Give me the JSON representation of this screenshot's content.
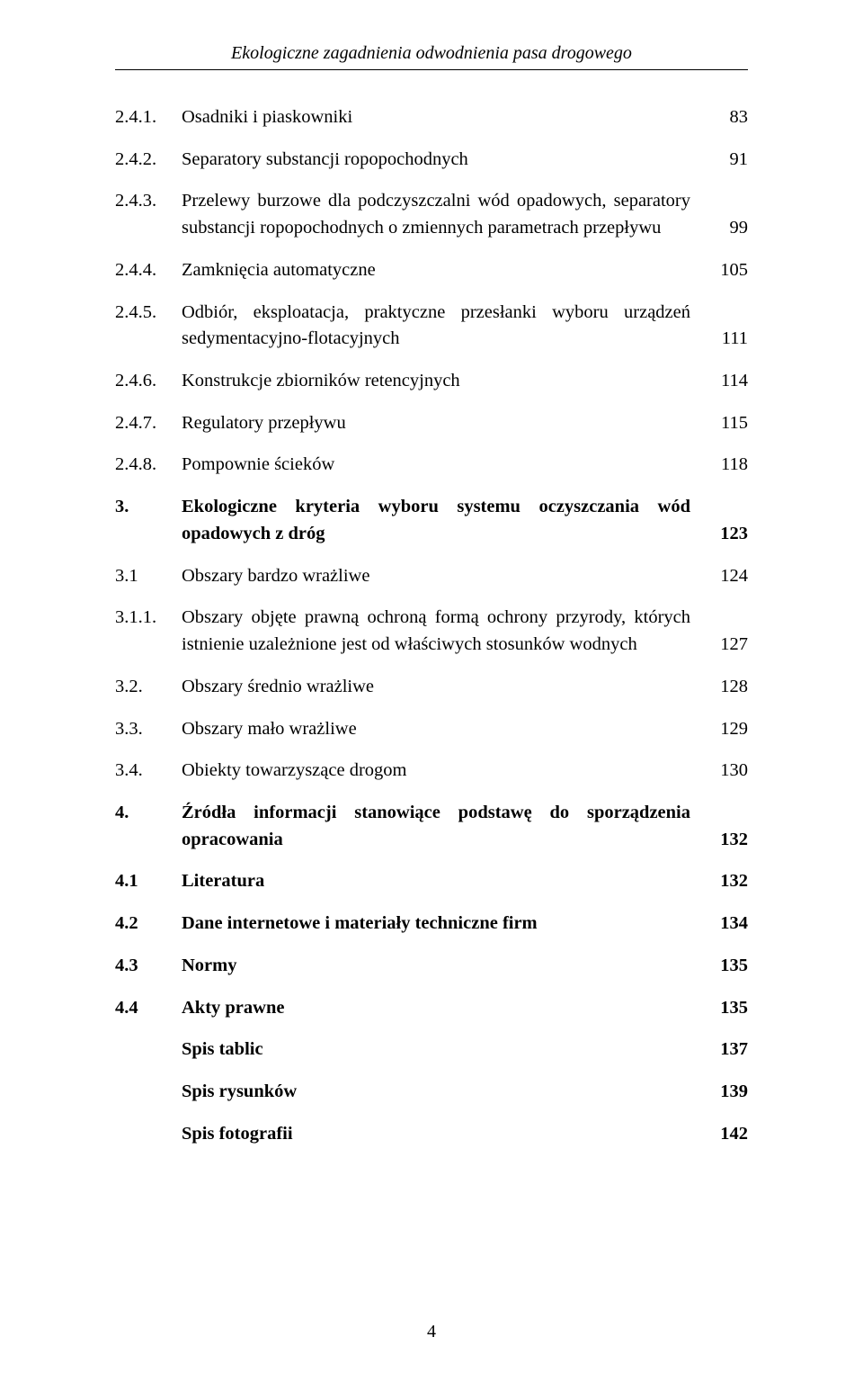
{
  "header": "Ekologiczne zagadnienia odwodnienia pasa drogowego",
  "toc": [
    {
      "num": "2.4.1.",
      "title": "Osadniki i piaskowniki",
      "page": "83",
      "bold": false
    },
    {
      "num": "2.4.2.",
      "title": "Separatory substancji ropopochodnych",
      "page": "91",
      "bold": false
    },
    {
      "num": "2.4.3.",
      "title": "Przelewy burzowe dla podczyszczalni wód opadowych, separatory substancji ropopochodnych o zmiennych parametrach przepływu",
      "page": "99",
      "bold": false
    },
    {
      "num": "2.4.4.",
      "title": "Zamknięcia automatyczne",
      "page": "105",
      "bold": false
    },
    {
      "num": "2.4.5.",
      "title": "Odbiór, eksploatacja, praktyczne przesłanki wyboru urządzeń sedymentacyjno-flotacyjnych",
      "page": "111",
      "bold": false
    },
    {
      "num": "2.4.6.",
      "title": "Konstrukcje zbiorników retencyjnych",
      "page": "114",
      "bold": false
    },
    {
      "num": "2.4.7.",
      "title": "Regulatory przepływu",
      "page": "115",
      "bold": false
    },
    {
      "num": "2.4.8.",
      "title": "Pompownie ścieków",
      "page": "118",
      "bold": false
    },
    {
      "num": "3.",
      "title": "Ekologiczne kryteria wyboru systemu oczyszczania wód opadowych z dróg",
      "page": "123",
      "bold": true
    },
    {
      "num": "3.1",
      "title": "Obszary bardzo wrażliwe",
      "page": "124",
      "bold": false
    },
    {
      "num": "3.1.1.",
      "title": "Obszary objęte prawną ochroną formą ochrony przyrody, których istnienie uzależnione jest od właściwych stosunków wodnych",
      "page": "127",
      "bold": false
    },
    {
      "num": "3.2.",
      "title": "Obszary średnio wrażliwe",
      "page": "128",
      "bold": false
    },
    {
      "num": "3.3.",
      "title": "Obszary mało wrażliwe",
      "page": "129",
      "bold": false
    },
    {
      "num": "3.4.",
      "title": "Obiekty towarzyszące drogom",
      "page": "130",
      "bold": false
    },
    {
      "num": "4.",
      "title": "Źródła informacji stanowiące podstawę do sporządzenia opracowania",
      "page": "132",
      "bold": true
    },
    {
      "num": "4.1",
      "title": "Literatura",
      "page": "132",
      "bold": true
    },
    {
      "num": "4.2",
      "title": "Dane internetowe i materiały techniczne firm",
      "page": "134",
      "bold": true
    },
    {
      "num": "4.3",
      "title": "Normy",
      "page": "135",
      "bold": true
    },
    {
      "num": "4.4",
      "title": "Akty prawne",
      "page": "135",
      "bold": true
    },
    {
      "num": "",
      "title": "Spis tablic",
      "page": "137",
      "bold": true
    },
    {
      "num": "",
      "title": "Spis rysunków",
      "page": "139",
      "bold": true
    },
    {
      "num": "",
      "title": "Spis fotografii",
      "page": "142",
      "bold": true
    }
  ],
  "footer": "4"
}
